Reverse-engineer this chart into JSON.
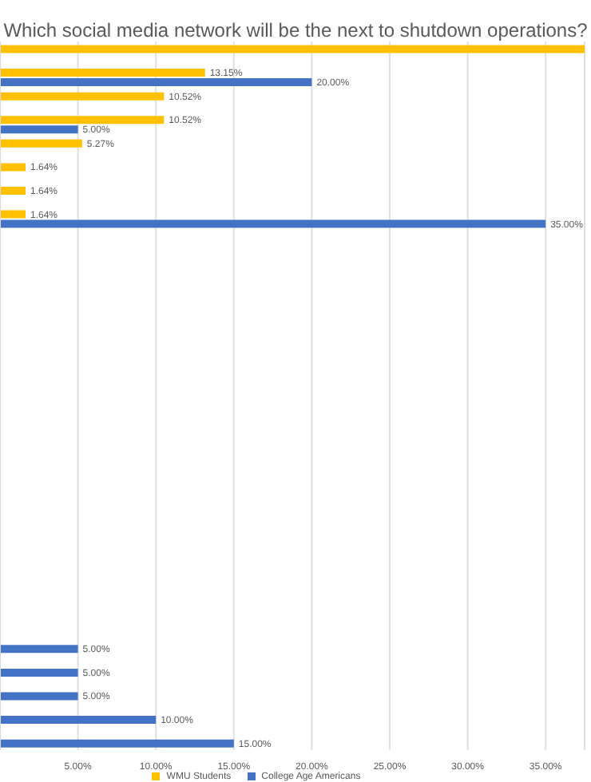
{
  "chart_data": {
    "type": "bar",
    "orientation": "horizontal",
    "title": "Which social media network will be the next to shutdown operations?",
    "categories": [
      null,
      null,
      null,
      null,
      null,
      null,
      null,
      null,
      null,
      null,
      null,
      null,
      null,
      null,
      null,
      null,
      null,
      null,
      null,
      null,
      null,
      null,
      null,
      null,
      null,
      null,
      null,
      null,
      null,
      null
    ],
    "series": [
      {
        "name": "WMU Students",
        "color": "#ffc000",
        "values": [
          37.5,
          13.15,
          10.52,
          10.52,
          5.27,
          1.64,
          1.64,
          1.64,
          null,
          null,
          null,
          null,
          null,
          null,
          null,
          null,
          null,
          null,
          null,
          null,
          null,
          null,
          null,
          null,
          null,
          null,
          null,
          null,
          null,
          null
        ],
        "value_labels": [
          null,
          "13.15%",
          "10.52%",
          "10.52%",
          "5.27%",
          "1.64%",
          "1.64%",
          "1.64%",
          null,
          null,
          null,
          null,
          null,
          null,
          null,
          null,
          null,
          null,
          null,
          null,
          null,
          null,
          null,
          null,
          null,
          null,
          null,
          null,
          null,
          null
        ]
      },
      {
        "name": "College Age Americans",
        "color": "#4472c4",
        "values": [
          null,
          20,
          null,
          5,
          null,
          null,
          null,
          35,
          null,
          null,
          null,
          null,
          null,
          null,
          null,
          null,
          null,
          null,
          null,
          null,
          null,
          null,
          null,
          null,
          null,
          5,
          5,
          5,
          10,
          15
        ],
        "value_labels": [
          null,
          "20.00%",
          null,
          "5.00%",
          null,
          null,
          null,
          "35.00%",
          null,
          null,
          null,
          null,
          null,
          null,
          null,
          null,
          null,
          null,
          null,
          null,
          null,
          null,
          null,
          null,
          null,
          "5.00%",
          "5.00%",
          "5.00%",
          "10.00%",
          "15.00%"
        ]
      }
    ],
    "xlim": [
      0,
      37.5
    ],
    "xticks": [
      {
        "value": 5,
        "label": "5.00%"
      },
      {
        "value": 10,
        "label": "10.00%"
      },
      {
        "value": 15,
        "label": "15.00%"
      },
      {
        "value": 20,
        "label": "20.00%"
      },
      {
        "value": 25,
        "label": "25.00%"
      },
      {
        "value": 30,
        "label": "30.00%"
      },
      {
        "value": 35,
        "label": "35.00%"
      }
    ],
    "grid": "x",
    "legend": "bottom"
  }
}
